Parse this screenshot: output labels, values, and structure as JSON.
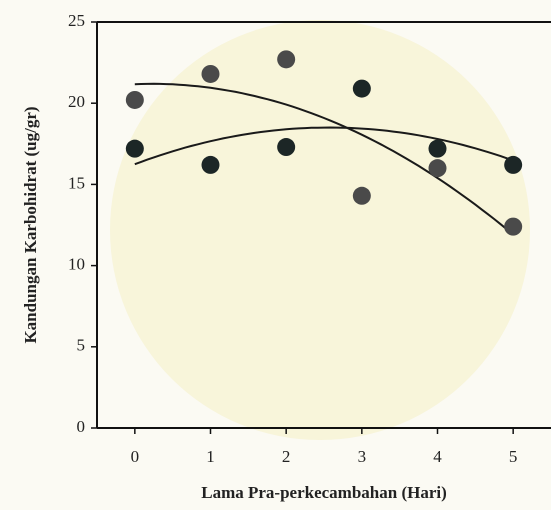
{
  "chart_data": {
    "type": "scatter",
    "y_label": "Kandungan Karbohidrat (ug/gr)",
    "x_label": "Lama Pra-perkecambahan (Hari)",
    "x": [
      0,
      1,
      2,
      3,
      4,
      5
    ],
    "series": [
      {
        "color": "#4a4a4a",
        "values": [
          20.2,
          21.8,
          22.7,
          14.3,
          16.0,
          12.4
        ]
      },
      {
        "color": "#1c2626",
        "values": [
          17.2,
          16.2,
          17.3,
          20.9,
          17.2,
          16.2
        ]
      }
    ],
    "xlim": [
      -0.5,
      5.5
    ],
    "ylim": [
      0,
      25
    ],
    "xticks": [
      0,
      1,
      2,
      3,
      4,
      5
    ],
    "yticks": [
      0,
      5,
      10,
      15,
      20,
      25
    ],
    "trendline": true
  }
}
